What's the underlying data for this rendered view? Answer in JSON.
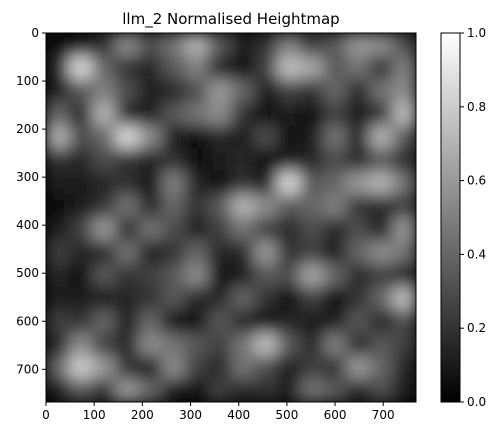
{
  "chart_data": {
    "type": "heatmap",
    "title": "llm_2 Normalised Heightmap",
    "xlabel": "",
    "ylabel": "",
    "xlim": [
      0,
      768
    ],
    "ylim": [
      768,
      0
    ],
    "x_ticks": [
      0,
      100,
      200,
      300,
      400,
      500,
      600,
      700
    ],
    "y_ticks": [
      0,
      100,
      200,
      300,
      400,
      500,
      600,
      700
    ],
    "grid": false,
    "colormap": "gray",
    "colorbar": {
      "range": [
        0.0,
        1.0
      ],
      "ticks": [
        "0.0",
        "0.2",
        "0.4",
        "0.6",
        "0.8",
        "1.0"
      ]
    },
    "grid_resolution": [
      16,
      16
    ],
    "values": [
      [
        0.05,
        0.1,
        0.2,
        0.55,
        0.3,
        0.45,
        0.7,
        0.35,
        0.1,
        0.2,
        0.5,
        0.25,
        0.35,
        0.6,
        0.55,
        0.3
      ],
      [
        0.15,
        0.85,
        0.4,
        0.2,
        0.15,
        0.35,
        0.5,
        0.15,
        0.05,
        0.25,
        0.75,
        0.65,
        0.35,
        0.45,
        0.2,
        0.5
      ],
      [
        0.1,
        0.35,
        0.5,
        0.3,
        0.1,
        0.15,
        0.3,
        0.6,
        0.4,
        0.1,
        0.25,
        0.2,
        0.4,
        0.15,
        0.45,
        0.55
      ],
      [
        0.4,
        0.15,
        0.7,
        0.15,
        0.1,
        0.35,
        0.45,
        0.55,
        0.2,
        0.05,
        0.1,
        0.05,
        0.25,
        0.1,
        0.2,
        0.75
      ],
      [
        0.7,
        0.3,
        0.4,
        0.85,
        0.55,
        0.1,
        0.05,
        0.15,
        0.1,
        0.3,
        0.05,
        0.1,
        0.45,
        0.15,
        0.7,
        0.35
      ],
      [
        0.2,
        0.15,
        0.3,
        0.2,
        0.15,
        0.2,
        0.05,
        0.1,
        0.15,
        0.05,
        0.1,
        0.15,
        0.3,
        0.15,
        0.35,
        0.2
      ],
      [
        0.1,
        0.1,
        0.15,
        0.2,
        0.05,
        0.5,
        0.15,
        0.05,
        0.2,
        0.1,
        0.85,
        0.35,
        0.4,
        0.6,
        0.7,
        0.45
      ],
      [
        0.05,
        0.1,
        0.2,
        0.45,
        0.15,
        0.4,
        0.2,
        0.35,
        0.7,
        0.55,
        0.35,
        0.4,
        0.5,
        0.2,
        0.15,
        0.25
      ],
      [
        0.1,
        0.25,
        0.6,
        0.15,
        0.45,
        0.3,
        0.1,
        0.25,
        0.45,
        0.25,
        0.15,
        0.3,
        0.15,
        0.3,
        0.1,
        0.6
      ],
      [
        0.25,
        0.15,
        0.15,
        0.45,
        0.1,
        0.2,
        0.4,
        0.15,
        0.15,
        0.6,
        0.2,
        0.25,
        0.1,
        0.4,
        0.55,
        0.45
      ],
      [
        0.15,
        0.05,
        0.35,
        0.2,
        0.25,
        0.35,
        0.55,
        0.05,
        0.1,
        0.35,
        0.3,
        0.65,
        0.4,
        0.15,
        0.25,
        0.15
      ],
      [
        0.1,
        0.1,
        0.1,
        0.15,
        0.2,
        0.35,
        0.15,
        0.15,
        0.4,
        0.2,
        0.05,
        0.25,
        0.05,
        0.2,
        0.4,
        0.75
      ],
      [
        0.25,
        0.2,
        0.4,
        0.1,
        0.4,
        0.05,
        0.05,
        0.35,
        0.15,
        0.05,
        0.15,
        0.1,
        0.1,
        0.35,
        0.15,
        0.3
      ],
      [
        0.15,
        0.55,
        0.25,
        0.15,
        0.55,
        0.45,
        0.35,
        0.25,
        0.45,
        0.75,
        0.35,
        0.15,
        0.5,
        0.15,
        0.35,
        0.25
      ],
      [
        0.4,
        0.8,
        0.6,
        0.2,
        0.1,
        0.55,
        0.25,
        0.15,
        0.45,
        0.3,
        0.1,
        0.25,
        0.2,
        0.6,
        0.4,
        0.15
      ],
      [
        0.1,
        0.35,
        0.2,
        0.6,
        0.4,
        0.1,
        0.05,
        0.25,
        0.15,
        0.2,
        0.1,
        0.45,
        0.35,
        0.15,
        0.3,
        0.1
      ]
    ]
  }
}
